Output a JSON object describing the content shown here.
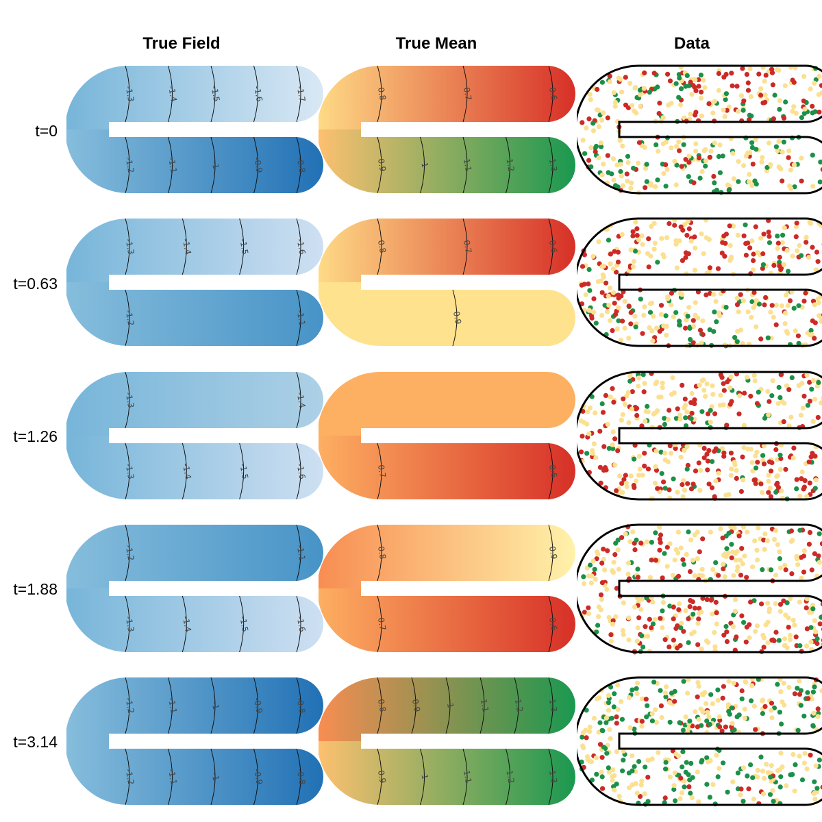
{
  "column_titles": [
    "True Field",
    "True Mean",
    "Data"
  ],
  "row_labels": [
    "t=0",
    "t=0.63",
    "t=1.26",
    "t=1.88",
    "t=3.14"
  ],
  "colors": {
    "blues": [
      "#deebf7",
      "#c6dbef",
      "#9ecae1",
      "#6baed6",
      "#3182bd",
      "#2171b5"
    ],
    "mean_scale": [
      "#d73027",
      "#f46d43",
      "#fdae61",
      "#fee08b",
      "#ffffbf",
      "#d9ef8b",
      "#66bd63",
      "#1a9850"
    ],
    "data_points": {
      "red": "#cc2a27",
      "yellow": "#fbe091",
      "green": "#1b9049"
    },
    "boundary": "#000000"
  },
  "chart_data": [
    {
      "type": "heatmap",
      "title": "True Field",
      "panels": [
        {
          "row": "t=0",
          "contours": {
            "upper": [
              {
                "v": -1.3,
                "label": "-1.3"
              },
              {
                "v": -1.4,
                "label": "-1.4"
              },
              {
                "v": -1.5,
                "label": "-1.5"
              },
              {
                "v": -1.6,
                "label": "-1.6"
              },
              {
                "v": -1.7,
                "label": "-1.7"
              }
            ],
            "lower": [
              {
                "v": -1.2,
                "label": "-1.2"
              },
              {
                "v": -1.1,
                "label": "-1.1"
              },
              {
                "v": -1.0,
                "label": "-1"
              },
              {
                "v": -0.9,
                "label": "-0.9"
              },
              {
                "v": -0.8,
                "label": "-0.8"
              }
            ]
          }
        },
        {
          "row": "t=0.63",
          "contours": {
            "upper": [
              {
                "v": -1.3,
                "label": "-1.3"
              },
              {
                "v": -1.4,
                "label": "-1.4"
              },
              {
                "v": -1.5,
                "label": "-1.5"
              },
              {
                "v": -1.6,
                "label": "-1.6"
              }
            ],
            "lower": [
              {
                "v": -1.2,
                "label": "-1.2"
              },
              {
                "v": -1.1,
                "label": "-1.1"
              }
            ]
          }
        },
        {
          "row": "t=1.26",
          "contours": {
            "upper": [
              {
                "v": -1.3,
                "label": "-1.3"
              },
              {
                "v": -1.4,
                "label": "-1.4"
              }
            ],
            "lower": [
              {
                "v": -1.3,
                "label": "-1.3"
              },
              {
                "v": -1.4,
                "label": "-1.4"
              },
              {
                "v": -1.5,
                "label": "-1.5"
              },
              {
                "v": -1.6,
                "label": "-1.6"
              }
            ]
          }
        },
        {
          "row": "t=1.88",
          "contours": {
            "upper": [
              {
                "v": -1.2,
                "label": "-1.2"
              },
              {
                "v": -1.1,
                "label": "-1.1"
              }
            ],
            "lower": [
              {
                "v": -1.3,
                "label": "-1.3"
              },
              {
                "v": -1.4,
                "label": "-1.4"
              },
              {
                "v": -1.5,
                "label": "-1.5"
              },
              {
                "v": -1.6,
                "label": "-1.6"
              }
            ]
          }
        },
        {
          "row": "t=3.14",
          "contours": {
            "upper": [
              {
                "v": -1.2,
                "label": "-1.2"
              },
              {
                "v": -1.1,
                "label": "-1.1"
              },
              {
                "v": -1.0,
                "label": "-1"
              },
              {
                "v": -0.9,
                "label": "-0.9"
              },
              {
                "v": -0.8,
                "label": "-0.8"
              }
            ],
            "lower": [
              {
                "v": -1.2,
                "label": "-1.2"
              },
              {
                "v": -1.1,
                "label": "-1.1"
              },
              {
                "v": -1.0,
                "label": "-1"
              },
              {
                "v": -0.9,
                "label": "-0.9"
              },
              {
                "v": -0.8,
                "label": "-0.8"
              }
            ]
          }
        }
      ]
    },
    {
      "type": "heatmap",
      "title": "True Mean",
      "panels": [
        {
          "row": "t=0",
          "contours": {
            "upper": [
              {
                "v": 0.8,
                "label": "0.8"
              },
              {
                "v": 0.7,
                "label": "0.7"
              },
              {
                "v": 0.6,
                "label": "0.6"
              }
            ],
            "lower": [
              {
                "v": 0.9,
                "label": "0.9"
              },
              {
                "v": 1.0,
                "label": "1"
              },
              {
                "v": 1.1,
                "label": "1.1"
              },
              {
                "v": 1.2,
                "label": "1.2"
              },
              {
                "v": 1.3,
                "label": "1.3"
              }
            ]
          }
        },
        {
          "row": "t=0.63",
          "contours": {
            "upper": [
              {
                "v": 0.8,
                "label": "0.8"
              },
              {
                "v": 0.7,
                "label": "0.7"
              },
              {
                "v": 0.6,
                "label": "0.6"
              }
            ],
            "lower": [
              {
                "v": 0.9,
                "label": "0.9"
              }
            ]
          }
        },
        {
          "row": "t=1.26",
          "contours": {
            "upper": [],
            "lower": [
              {
                "v": 0.7,
                "label": "0.7"
              },
              {
                "v": 0.6,
                "label": "0.6"
              }
            ]
          }
        },
        {
          "row": "t=1.88",
          "contours": {
            "upper": [
              {
                "v": 0.8,
                "label": "0.8"
              },
              {
                "v": 0.9,
                "label": "0.9"
              }
            ],
            "lower": [
              {
                "v": 0.7,
                "label": "0.7"
              },
              {
                "v": 0.6,
                "label": "0.6"
              }
            ]
          }
        },
        {
          "row": "t=3.14",
          "contours": {
            "upper": [
              {
                "v": 0.8,
                "label": "0.8"
              },
              {
                "v": 0.9,
                "label": "0.9"
              },
              {
                "v": 1.0,
                "label": "1"
              },
              {
                "v": 1.1,
                "label": "1.1"
              },
              {
                "v": 1.2,
                "label": "1.2"
              },
              {
                "v": 1.3,
                "label": "1.3"
              }
            ],
            "lower": [
              {
                "v": 0.9,
                "label": "0.9"
              },
              {
                "v": 1.0,
                "label": "1"
              },
              {
                "v": 1.1,
                "label": "1.1"
              },
              {
                "v": 1.2,
                "label": "1.2"
              },
              {
                "v": 1.3,
                "label": "1.3"
              }
            ]
          }
        }
      ]
    },
    {
      "type": "scatter",
      "title": "Data",
      "point_categories": [
        "red",
        "yellow",
        "green"
      ],
      "panels": [
        {
          "row": "t=0",
          "approx_points": 400,
          "mix": {
            "upper": {
              "red": 0.4,
              "yellow": 0.45,
              "green": 0.15
            },
            "lower": {
              "red": 0.1,
              "yellow": 0.45,
              "green": 0.45
            }
          }
        },
        {
          "row": "t=0.63",
          "approx_points": 400,
          "mix": {
            "upper": {
              "red": 0.45,
              "yellow": 0.45,
              "green": 0.1
            },
            "lower": {
              "red": 0.3,
              "yellow": 0.5,
              "green": 0.2
            }
          }
        },
        {
          "row": "t=1.26",
          "approx_points": 400,
          "mix": {
            "upper": {
              "red": 0.35,
              "yellow": 0.45,
              "green": 0.2
            },
            "lower": {
              "red": 0.45,
              "yellow": 0.45,
              "green": 0.1
            }
          }
        },
        {
          "row": "t=1.88",
          "approx_points": 400,
          "mix": {
            "upper": {
              "red": 0.3,
              "yellow": 0.5,
              "green": 0.2
            },
            "lower": {
              "red": 0.45,
              "yellow": 0.45,
              "green": 0.1
            }
          }
        },
        {
          "row": "t=3.14",
          "approx_points": 400,
          "mix": {
            "upper": {
              "red": 0.15,
              "yellow": 0.45,
              "green": 0.4
            },
            "lower": {
              "red": 0.1,
              "yellow": 0.45,
              "green": 0.45
            }
          }
        }
      ]
    }
  ]
}
